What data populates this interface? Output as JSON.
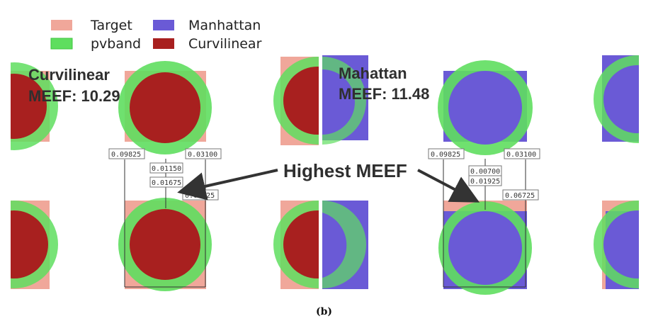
{
  "legend": {
    "target": "Target",
    "pvband": "pvband",
    "manhattan": "Manhattan",
    "curvilinear": "Curvilinear"
  },
  "colors": {
    "target": "#f0a79a",
    "pvband": "#5fde5f",
    "manhattan": "#6a5ad6",
    "curvilinear": "#a8201f"
  },
  "left_panel": {
    "title": "Curvilinear",
    "meef": "MEEF: 10.29",
    "measurements": [
      "0.09825",
      "0.03100",
      "0.01150",
      "0.01675",
      "0.06725"
    ]
  },
  "right_panel": {
    "title": "Mahattan",
    "meef": "MEEF: 11.48",
    "measurements": [
      "0.09825",
      "0.03100",
      "0.00700",
      "0.01925",
      "0.06725"
    ]
  },
  "annotation": "Highest MEEF",
  "caption": "(b)"
}
